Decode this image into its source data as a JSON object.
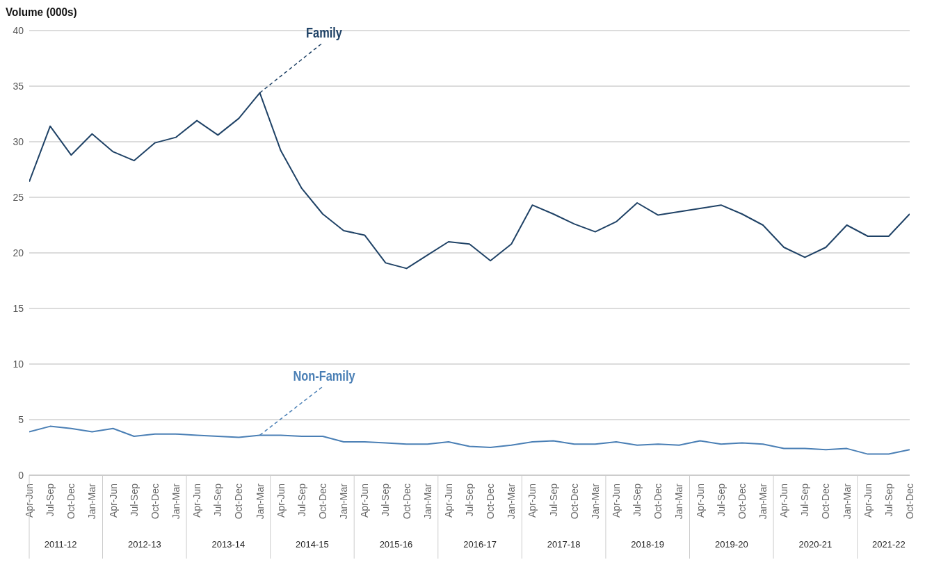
{
  "chart_data": {
    "type": "line",
    "ylabel": "Volume (000s)",
    "categories": [
      "Apr-Jun",
      "Jul-Sep",
      "Oct-Dec",
      "Jan-Mar",
      "Apr-Jun",
      "Jul-Sep",
      "Oct-Dec",
      "Jan-Mar",
      "Apr-Jun",
      "Jul-Sep",
      "Oct-Dec",
      "Jan-Mar",
      "Apr-Jun",
      "Jul-Sep",
      "Oct-Dec",
      "Jan-Mar",
      "Apr-Jun",
      "Jul-Sep",
      "Oct-Dec",
      "Jan-Mar",
      "Apr-Jun",
      "Jul-Sep",
      "Oct-Dec",
      "Jan-Mar",
      "Apr-Jun",
      "Jul-Sep",
      "Oct-Dec",
      "Jan-Mar",
      "Apr-Jun",
      "Jul-Sep",
      "Oct-Dec",
      "Jan-Mar",
      "Apr-Jun",
      "Jul-Sep",
      "Oct-Dec",
      "Jan-Mar",
      "Apr-Jun",
      "Jul-Sep",
      "Oct-Dec",
      "Jan-Mar",
      "Apr-Jun",
      "Jul-Sep",
      "Oct-Dec"
    ],
    "annotations": [
      "2011-12",
      "2012-13",
      "2013-14",
      "2014-15",
      "2015-16",
      "2016-17",
      "2017-18",
      "2018-19",
      "2019-20",
      "2020-21",
      "2021-22"
    ],
    "series": [
      {
        "name": "Family",
        "color": "#1f4266",
        "values": [
          26.4,
          31.4,
          28.8,
          30.7,
          29.1,
          28.3,
          29.9,
          30.4,
          31.9,
          30.6,
          32.1,
          34.4,
          29.2,
          25.8,
          23.5,
          22.0,
          21.6,
          19.1,
          18.6,
          19.8,
          21.0,
          20.8,
          19.3,
          20.8,
          24.3,
          23.5,
          22.6,
          21.9,
          22.8,
          24.5,
          23.4,
          23.7,
          24.0,
          24.3,
          23.5,
          22.5,
          20.5,
          19.6,
          20.5,
          22.5,
          21.5,
          21.5,
          23.5
        ]
      },
      {
        "name": "Non-Family",
        "color": "#4a7fb5",
        "values": [
          3.9,
          4.4,
          4.2,
          3.9,
          4.2,
          3.5,
          3.7,
          3.7,
          3.6,
          3.5,
          3.4,
          3.6,
          3.6,
          3.5,
          3.5,
          3.0,
          3.0,
          2.9,
          2.8,
          2.8,
          3.0,
          2.6,
          2.5,
          2.7,
          3.0,
          3.1,
          2.8,
          2.8,
          3.0,
          2.7,
          2.8,
          2.7,
          3.1,
          2.8,
          2.9,
          2.8,
          2.4,
          2.4,
          2.3,
          2.4,
          1.9,
          1.9,
          2.3
        ]
      }
    ],
    "ylim": [
      0,
      40
    ],
    "yticks": [
      0,
      5,
      10,
      15,
      20,
      25,
      30,
      35,
      40
    ],
    "grid": "y",
    "legend": false,
    "marker": "none",
    "line_style": "solid"
  }
}
